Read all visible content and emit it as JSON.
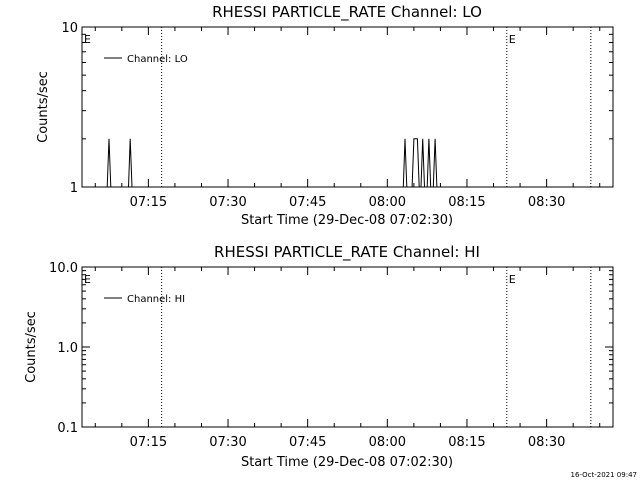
{
  "footer": {
    "timestamp": "16-Oct-2021 09:47"
  },
  "chart_data": [
    {
      "type": "line",
      "title": "RHESSI PARTICLE_RATE Channel: LO",
      "xlabel": "Start Time (29-Dec-08 07:02:30)",
      "ylabel": "Counts/sec",
      "yscale": "log",
      "ylim": [
        1,
        10
      ],
      "ytick_values": [
        1,
        10
      ],
      "ytick_labels": [
        "1",
        "10"
      ],
      "xlim": [
        "07:02:30",
        "08:42:30"
      ],
      "xtick_labels": [
        "07:15",
        "07:30",
        "07:45",
        "08:00",
        "08:15",
        "08:30"
      ],
      "legend_position": "top-left",
      "series": [
        {
          "name": "Channel: LO",
          "points": [
            [
              "07:07:15",
              1
            ],
            [
              "07:07:35",
              2
            ],
            [
              "07:07:55",
              1
            ],
            [
              "07:11:15",
              1
            ],
            [
              "07:11:35",
              2
            ],
            [
              "07:11:55",
              1
            ],
            [
              "08:03:00",
              1
            ],
            [
              "08:03:20",
              2
            ],
            [
              "08:03:40",
              1
            ],
            [
              "08:04:40",
              1
            ],
            [
              "08:05:00",
              2
            ],
            [
              "08:05:40",
              2
            ],
            [
              "08:06:00",
              1
            ],
            [
              "08:06:20",
              1
            ],
            [
              "08:06:40",
              2
            ],
            [
              "08:07:00",
              1
            ],
            [
              "08:07:30",
              1
            ],
            [
              "08:07:50",
              2
            ],
            [
              "08:08:10",
              1
            ],
            [
              "08:08:40",
              1
            ],
            [
              "08:09:00",
              2
            ],
            [
              "08:09:20",
              1
            ]
          ]
        }
      ],
      "vlines": [
        "07:17:30",
        "08:22:30",
        "08:38:20"
      ],
      "flags": [
        {
          "label": "E",
          "time": "07:02:30"
        },
        {
          "label": "E",
          "time": "08:22:30"
        }
      ]
    },
    {
      "type": "line",
      "title": "RHESSI PARTICLE_RATE Channel: HI",
      "xlabel": "Start Time (29-Dec-08 07:02:30)",
      "ylabel": "Counts/sec",
      "yscale": "log",
      "ylim": [
        0.1,
        10
      ],
      "ytick_values": [
        0.1,
        1,
        10
      ],
      "ytick_labels": [
        "0.1",
        "1.0",
        "10.0"
      ],
      "xlim": [
        "07:02:30",
        "08:42:30"
      ],
      "xtick_labels": [
        "07:15",
        "07:30",
        "07:45",
        "08:00",
        "08:15",
        "08:30"
      ],
      "legend_position": "top-left",
      "series": [
        {
          "name": "Channel: HI",
          "points": []
        }
      ],
      "vlines": [
        "07:17:30",
        "08:22:30",
        "08:38:20"
      ],
      "flags": [
        {
          "label": "E",
          "time": "07:02:30"
        },
        {
          "label": "E",
          "time": "08:22:30"
        }
      ]
    }
  ]
}
